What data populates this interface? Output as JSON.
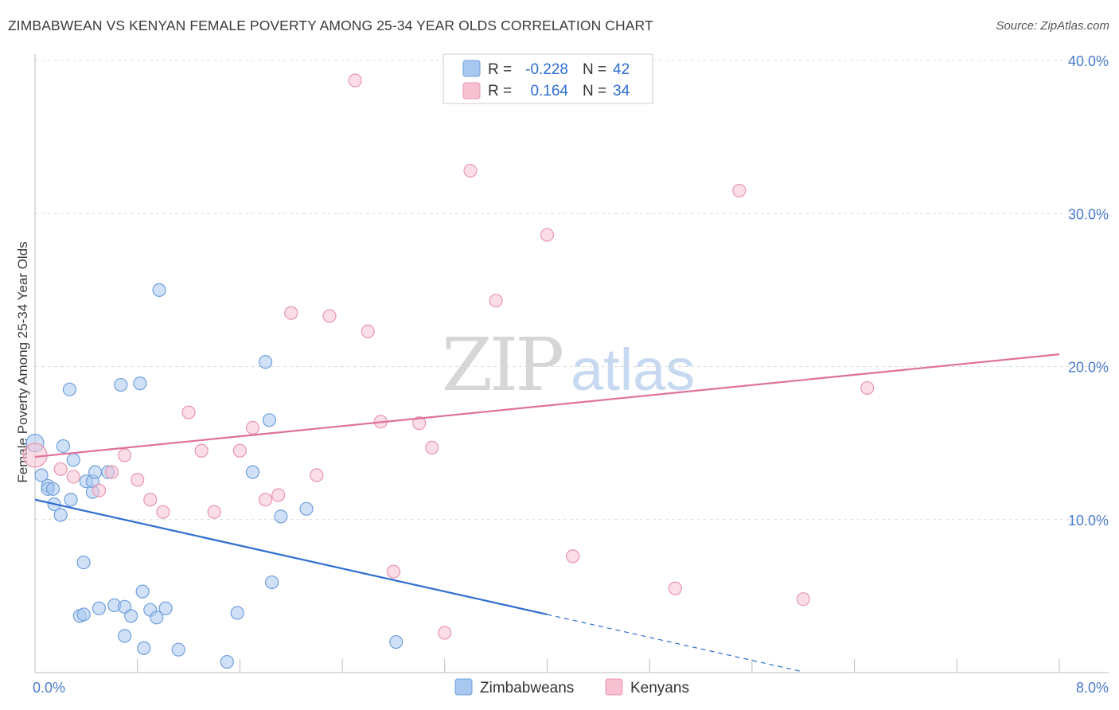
{
  "title": "ZIMBABWEAN VS KENYAN FEMALE POVERTY AMONG 25-34 YEAR OLDS CORRELATION CHART",
  "source": "Source: ZipAtlas.com",
  "watermark": {
    "part1": "ZIP",
    "part2": "atlas"
  },
  "colors": {
    "zimbabweans_fill": "#a9c8f0",
    "zimbabweans_stroke": "#6f9fdc",
    "zimbabweans_line": "#2f6fd0",
    "kenyans_fill": "#f7c1d1",
    "kenyans_stroke": "#e896b0",
    "kenyans_line": "#e0709a",
    "tick_text": "#4a7ccc"
  },
  "legend": {
    "rows": [
      {
        "r_label": "R =",
        "r_value": "-0.228",
        "n_label": "N =",
        "n_value": "42"
      },
      {
        "r_label": "R =",
        "r_value": "0.164",
        "n_label": "N =",
        "n_value": "34"
      }
    ]
  },
  "chart_data": {
    "type": "scatter",
    "title": "ZIMBABWEAN VS KENYAN FEMALE POVERTY AMONG 25-34 YEAR OLDS CORRELATION CHART",
    "xlabel": "",
    "ylabel": "Female Poverty Among 25-34 Year Olds",
    "xlim": [
      0,
      8
    ],
    "ylim": [
      0,
      40
    ],
    "x_tick_labels": [
      "0.0%",
      "8.0%"
    ],
    "y_ticks": [
      10,
      20,
      30,
      40
    ],
    "y_tick_labels": [
      "10.0%",
      "20.0%",
      "30.0%",
      "40.0%"
    ],
    "grid": true,
    "legend_position": "top-center",
    "series": [
      {
        "name": "Zimbabweans",
        "r": -0.228,
        "n": 42,
        "trend": {
          "x0": 0.0,
          "y0": 11.3,
          "x1": 4.0,
          "y1": 3.8,
          "dash_to_x": 6.0,
          "dash_to_y": 0.05
        },
        "points": [
          [
            0.0,
            15.0
          ],
          [
            0.05,
            12.9
          ],
          [
            0.1,
            12.2
          ],
          [
            0.1,
            12.0
          ],
          [
            0.14,
            12.0
          ],
          [
            0.15,
            11.0
          ],
          [
            0.2,
            10.3
          ],
          [
            0.22,
            14.8
          ],
          [
            0.27,
            18.5
          ],
          [
            0.28,
            11.3
          ],
          [
            0.3,
            13.9
          ],
          [
            0.35,
            3.7
          ],
          [
            0.38,
            3.8
          ],
          [
            0.38,
            7.2
          ],
          [
            0.4,
            12.5
          ],
          [
            0.45,
            11.8
          ],
          [
            0.45,
            12.5
          ],
          [
            0.47,
            13.1
          ],
          [
            0.5,
            4.2
          ],
          [
            0.57,
            13.1
          ],
          [
            0.62,
            4.4
          ],
          [
            0.67,
            18.8
          ],
          [
            0.7,
            4.3
          ],
          [
            0.7,
            2.4
          ],
          [
            0.75,
            3.7
          ],
          [
            0.82,
            18.9
          ],
          [
            0.84,
            5.3
          ],
          [
            0.85,
            1.6
          ],
          [
            0.9,
            4.1
          ],
          [
            0.95,
            3.6
          ],
          [
            0.97,
            25.0
          ],
          [
            1.02,
            4.2
          ],
          [
            1.12,
            1.5
          ],
          [
            1.5,
            0.7
          ],
          [
            1.58,
            3.9
          ],
          [
            1.8,
            20.3
          ],
          [
            1.83,
            16.5
          ],
          [
            1.85,
            5.9
          ],
          [
            1.92,
            10.2
          ],
          [
            2.12,
            10.7
          ],
          [
            2.82,
            2.0
          ],
          [
            1.7,
            13.1
          ]
        ]
      },
      {
        "name": "Kenyans",
        "r": 0.164,
        "n": 34,
        "trend": {
          "x0": 0.0,
          "y0": 14.1,
          "x1": 8.0,
          "y1": 20.8
        },
        "points": [
          [
            0.0,
            14.2
          ],
          [
            0.2,
            13.3
          ],
          [
            0.3,
            12.8
          ],
          [
            0.5,
            11.9
          ],
          [
            0.6,
            13.1
          ],
          [
            0.7,
            14.2
          ],
          [
            0.8,
            12.6
          ],
          [
            0.9,
            11.3
          ],
          [
            1.0,
            10.5
          ],
          [
            1.2,
            17.0
          ],
          [
            1.3,
            14.5
          ],
          [
            1.4,
            10.5
          ],
          [
            1.6,
            14.5
          ],
          [
            1.7,
            16.0
          ],
          [
            1.8,
            11.3
          ],
          [
            1.9,
            11.6
          ],
          [
            2.0,
            23.5
          ],
          [
            2.2,
            12.9
          ],
          [
            2.3,
            23.3
          ],
          [
            2.5,
            38.7
          ],
          [
            2.6,
            22.3
          ],
          [
            2.7,
            16.4
          ],
          [
            2.8,
            6.6
          ],
          [
            3.0,
            16.3
          ],
          [
            3.1,
            14.7
          ],
          [
            3.2,
            2.6
          ],
          [
            3.4,
            32.8
          ],
          [
            3.6,
            24.3
          ],
          [
            4.0,
            28.6
          ],
          [
            4.2,
            7.6
          ],
          [
            5.0,
            5.5
          ],
          [
            5.5,
            31.5
          ],
          [
            6.0,
            4.8
          ],
          [
            6.5,
            18.6
          ]
        ]
      }
    ]
  },
  "bottom_legend": [
    "Zimbabweans",
    "Kenyans"
  ]
}
